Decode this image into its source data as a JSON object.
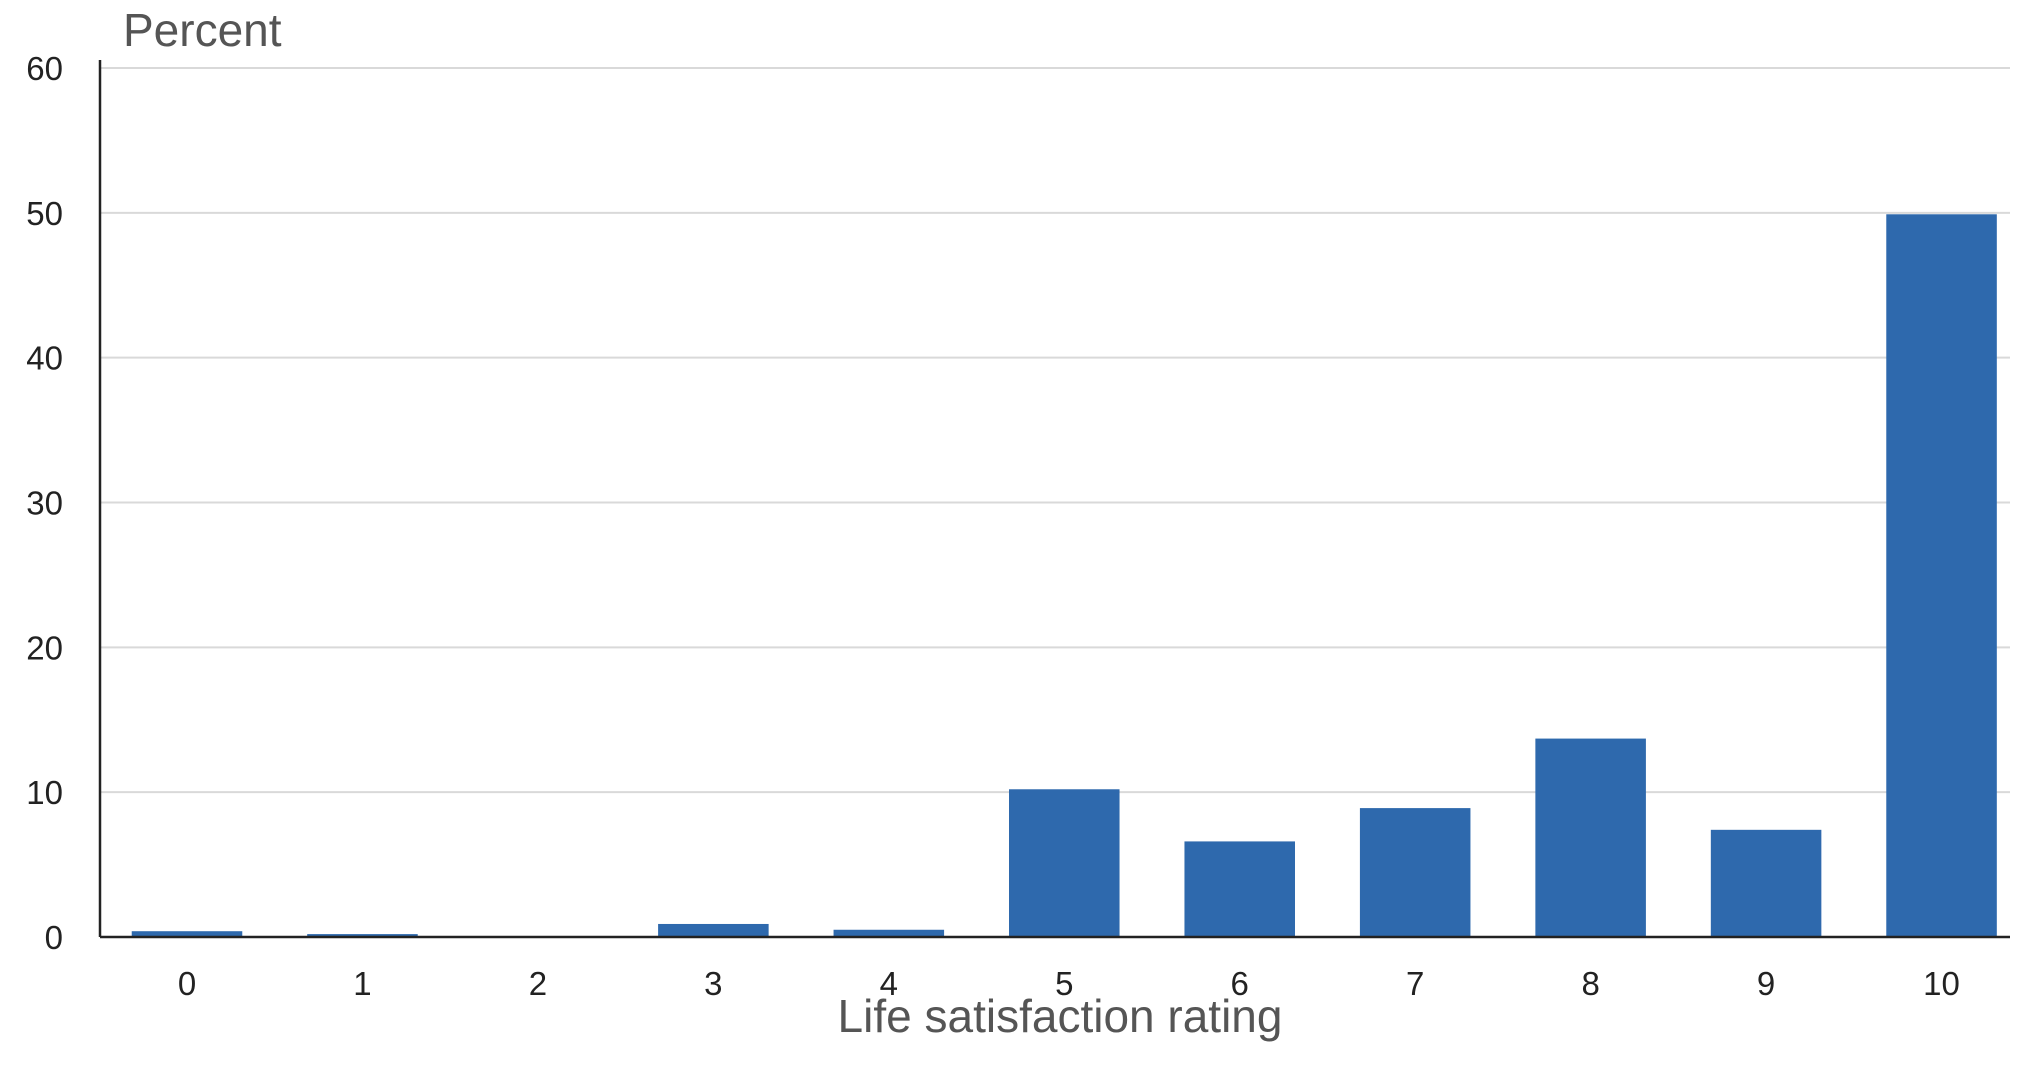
{
  "chart_data": {
    "type": "bar",
    "title": "",
    "ylabel": "Percent",
    "xlabel": "Life satisfaction rating",
    "categories": [
      "0",
      "1",
      "2",
      "3",
      "4",
      "5",
      "6",
      "7",
      "8",
      "9",
      "10"
    ],
    "values": [
      0.4,
      0.2,
      0,
      0.9,
      0.5,
      10.2,
      6.6,
      8.9,
      13.7,
      7.4,
      49.9
    ],
    "ylim": [
      0,
      60
    ],
    "yticks": [
      "0",
      "10",
      "20",
      "30",
      "40",
      "50",
      "60"
    ],
    "grid": true,
    "legend": "none",
    "bar_color": "#2e69ad",
    "gridline_color": "#d9d9d9",
    "axis_color": "#222222"
  }
}
